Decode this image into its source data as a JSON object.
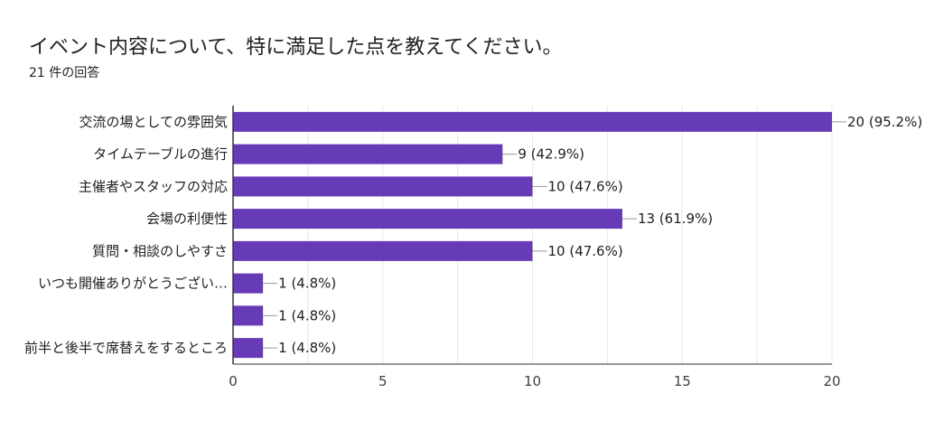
{
  "header": {
    "title": "イベント内容について、特に満足した点を教えてください。",
    "response_count": "21 件の回答"
  },
  "colors": {
    "bar": "#673ab7",
    "axis": "#333333",
    "grid": "#e8e8e8",
    "leader": "#999999"
  },
  "chart_data": {
    "type": "bar",
    "orientation": "horizontal",
    "title": "イベント内容について、特に満足した点を教えてください。",
    "subtitle": "21 件の回答",
    "categories": [
      "交流の場としての雰囲気",
      "タイムテーブルの進行",
      "主催者やスタッフの対応",
      "会場の利便性",
      "質問・相談のしやすさ",
      "いつも開催ありがとうござい…",
      "",
      "前半と後半で席替えをするところ"
    ],
    "values": [
      20,
      9,
      10,
      13,
      10,
      1,
      1,
      1
    ],
    "data_labels": [
      "20 (95.2%)",
      "9 (42.9%)",
      "10 (47.6%)",
      "13 (61.9%)",
      "10 (47.6%)",
      "1 (4.8%)",
      "1 (4.8%)",
      "1 (4.8%)"
    ],
    "xlim": [
      0,
      20
    ],
    "xticks": [
      0,
      5,
      10,
      15,
      20
    ],
    "xlabel": "",
    "ylabel": "",
    "grid": true,
    "legend": "none"
  }
}
